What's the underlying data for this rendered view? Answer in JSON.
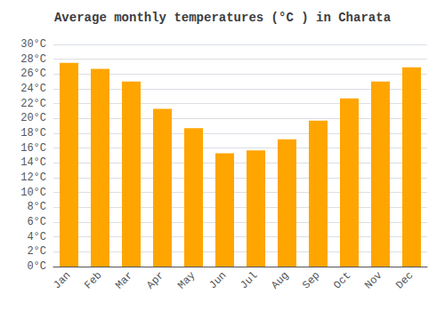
{
  "chart_data": {
    "type": "bar",
    "title": "Average monthly temperatures (°C ) in Charata",
    "categories": [
      "Jan",
      "Feb",
      "Mar",
      "Apr",
      "May",
      "Jun",
      "Jul",
      "Aug",
      "Sep",
      "Oct",
      "Nov",
      "Dec"
    ],
    "values": [
      27.5,
      26.7,
      25.0,
      21.3,
      18.7,
      15.3,
      15.7,
      17.2,
      19.7,
      22.7,
      25.0,
      26.9
    ],
    "color": "#FFA500",
    "ylim": [
      0,
      30
    ],
    "yticks": [
      {
        "value": 0,
        "label": "0°C"
      },
      {
        "value": 2,
        "label": "2°C"
      },
      {
        "value": 4,
        "label": "4°C"
      },
      {
        "value": 6,
        "label": "6°C"
      },
      {
        "value": 8,
        "label": "8°C"
      },
      {
        "value": 10,
        "label": "10°C"
      },
      {
        "value": 12,
        "label": "12°C"
      },
      {
        "value": 14,
        "label": "14°C"
      },
      {
        "value": 16,
        "label": "16°C"
      },
      {
        "value": 18,
        "label": "18°C"
      },
      {
        "value": 20,
        "label": "20°C"
      },
      {
        "value": 22,
        "label": "22°C"
      },
      {
        "value": 24,
        "label": "24°C"
      },
      {
        "value": 26,
        "label": "26°C"
      },
      {
        "value": 28,
        "label": "28°C"
      },
      {
        "value": 30,
        "label": "30°C"
      }
    ],
    "grid": true
  }
}
